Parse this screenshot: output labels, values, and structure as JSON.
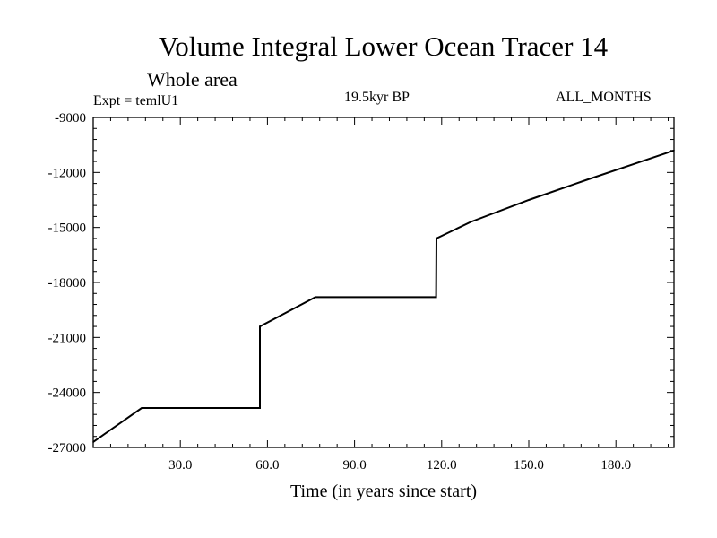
{
  "header": {
    "title": "Volume Integral Lower Ocean Tracer 14",
    "subtitle": "Whole area",
    "expt": "Expt = temlU1",
    "period": "19.5kyr BP",
    "months": "ALL_MONTHS"
  },
  "chart_data": {
    "type": "line",
    "title": "Volume Integral Lower Ocean Tracer 14",
    "subtitle": "Whole area",
    "xlabel": "Time (in years since start)",
    "ylabel": "",
    "xlim": [
      0,
      200
    ],
    "ylim": [
      -27000,
      -9000
    ],
    "grid": false,
    "xticks": [
      30,
      60,
      90,
      120,
      150,
      180
    ],
    "xtick_labels": [
      "30.0",
      "60.0",
      "90.0",
      "120.0",
      "150.0",
      "180.0"
    ],
    "yticks": [
      -27000,
      -24000,
      -21000,
      -18000,
      -15000,
      -12000,
      -9000
    ],
    "ytick_labels": [
      "-27000",
      "-24000",
      "-21000",
      "-18000",
      "-15000",
      "-12000",
      "-9000"
    ],
    "series": [
      {
        "name": "Volume Integral Lower Ocean Tracer 14",
        "x": [
          0,
          16.7,
          57.4,
          57.4,
          76.5,
          118.1,
          118.2,
          130,
          150,
          170,
          185,
          200
        ],
        "y": [
          -26700,
          -24850,
          -24850,
          -20400,
          -18800,
          -18800,
          -15600,
          -14700,
          -13500,
          -12400,
          -11600,
          -10800
        ]
      }
    ]
  }
}
